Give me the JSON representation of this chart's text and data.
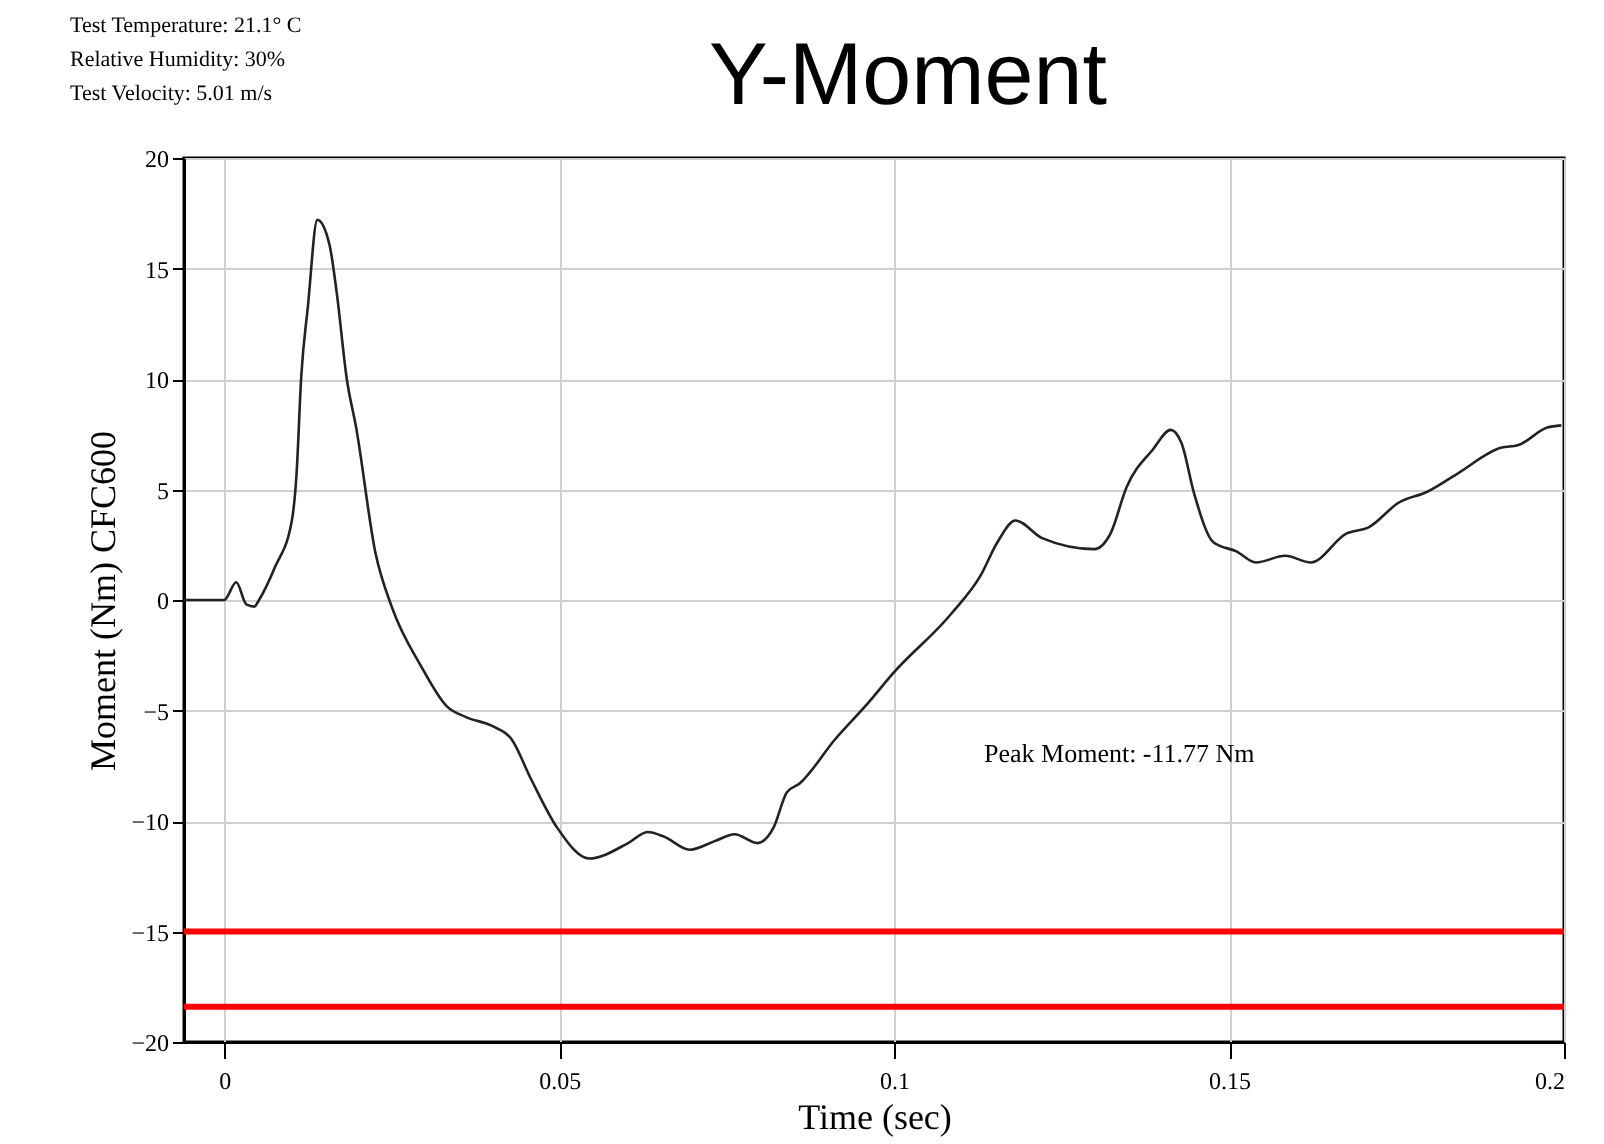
{
  "chart_data": {
    "type": "line",
    "title": "Y-Moment",
    "xlabel": "Time (sec)",
    "ylabel": "Moment (Nm) CFC600",
    "annotations": [
      "Test Temperature: 21.1° C",
      "Relative Humidity: 30%",
      "Test Velocity: 5.01 m/s",
      "Peak Moment: -11.77 Nm"
    ],
    "xlim": [
      -0.006,
      0.2
    ],
    "xticks": [
      0,
      0.05,
      0.1,
      0.15,
      0.2
    ],
    "ylim": [
      -20,
      20
    ],
    "yticks": [
      -20,
      -15,
      -10,
      -5,
      0,
      5,
      10,
      15,
      20
    ],
    "grid": true,
    "marker": "none",
    "line_style": "solid",
    "ref_lines": [
      {
        "axis": "y",
        "value": -15.0,
        "color": "#ff0000"
      },
      {
        "axis": "y",
        "value": -18.4,
        "color": "#ff0000"
      }
    ],
    "series": [
      {
        "color": "#222222",
        "x": [
          -0.006,
          0,
          0.0018,
          0.0033,
          0.0045,
          0.0052,
          0.0076,
          0.0101,
          0.0108,
          0.0115,
          0.0125,
          0.0139,
          0.0157,
          0.0168,
          0.0183,
          0.0197,
          0.0226,
          0.025,
          0.0294,
          0.0332,
          0.0361,
          0.04,
          0.0429,
          0.0458,
          0.0497,
          0.0545,
          0.0603,
          0.0632,
          0.0656,
          0.0695,
          0.0733,
          0.0762,
          0.0796,
          0.082,
          0.084,
          0.0859,
          0.0912,
          0.096,
          0.0999,
          0.1086,
          0.1129,
          0.1154,
          0.1181,
          0.1221,
          0.1299,
          0.1323,
          0.1347,
          0.1386,
          0.1413,
          0.1429,
          0.1448,
          0.1477,
          0.1511,
          0.154,
          0.1584,
          0.1622,
          0.1675,
          0.1709,
          0.1753,
          0.1796,
          0.184,
          0.1907,
          0.1931,
          0.1975,
          0.1996
        ],
        "values": [
          0,
          0,
          0.8,
          -0.2,
          -0.3,
          0,
          1.5,
          3.6,
          5.7,
          10.1,
          13.3,
          17.2,
          16.1,
          13.9,
          10.0,
          7.8,
          2.1,
          -0.3,
          -3.0,
          -4.8,
          -5.3,
          -5.7,
          -6.3,
          -8.1,
          -10.3,
          -11.7,
          -11.0,
          -10.5,
          -10.7,
          -11.3,
          -10.9,
          -10.6,
          -11.0,
          -10.3,
          -8.7,
          -8.3,
          -6.3,
          -4.7,
          -3.3,
          -0.6,
          1.1,
          2.6,
          3.6,
          2.8,
          2.3,
          3.0,
          5.1,
          6.8,
          7.7,
          7.1,
          4.8,
          2.6,
          2.2,
          1.7,
          2.0,
          1.7,
          3.0,
          3.3,
          4.4,
          4.9,
          5.7,
          6.9,
          7.0,
          7.8,
          7.9
        ]
      }
    ]
  }
}
